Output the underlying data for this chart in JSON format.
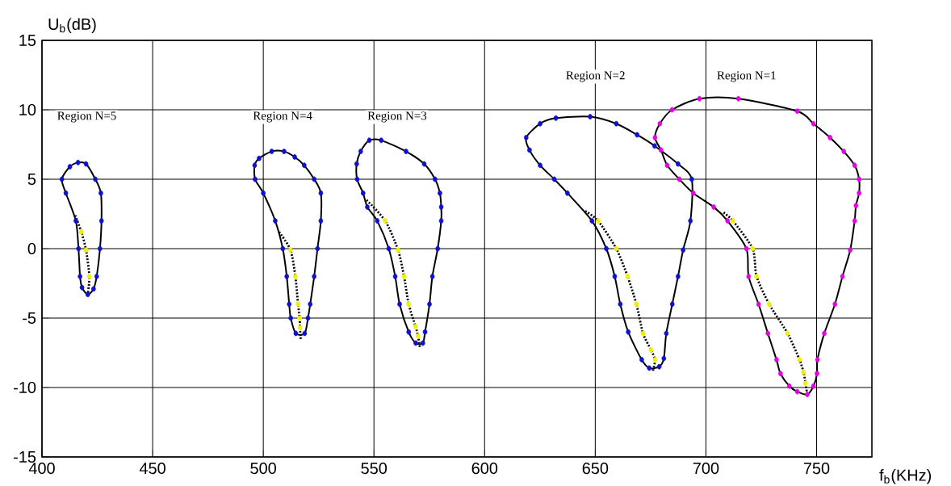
{
  "chart_data": {
    "type": "line",
    "xlabel": "f$_{b}$(KHz)",
    "ylabel": "U$_{b}$(dB)",
    "xlim": [
      400,
      775
    ],
    "ylim": [
      -15,
      15
    ],
    "xticks": [
      400,
      450,
      500,
      550,
      600,
      650,
      700,
      750
    ],
    "yticks": [
      -15,
      -10,
      -5,
      0,
      5,
      10,
      15
    ],
    "grid": true,
    "annotations": [
      "Region N=5",
      "Region N=4",
      "Region N=3",
      "Region N=2",
      "Region N=1"
    ],
    "series": [
      {
        "type": "scatter",
        "color": "#1010d0",
        "marker": "circle",
        "x": [
          415.3,
          410.8,
          409.0,
          412.6,
          416.3,
          419.9,
          424.1,
          426.6,
          426.9,
          426.2,
          424.7,
          423.3,
          420.7,
          418.1,
          417.2,
          416.5
        ],
        "values": [
          2.0,
          4.0,
          5.0,
          5.9,
          6.2,
          6.1,
          5.0,
          4.0,
          2.0,
          0.0,
          -2.0,
          -2.9,
          -3.3,
          -2.8,
          -2.0,
          0.0
        ]
      },
      {
        "type": "scatter",
        "color": "#f0f000",
        "marker": "circle",
        "x": [
          417.8,
          419.9,
          421.4
        ],
        "values": [
          1.2,
          -0.1,
          -2.0
        ]
      },
      {
        "color": "#000000",
        "line_style": "dotted",
        "marker": "none",
        "x": [
          415.0,
          417.8,
          419.9,
          421.4,
          420.7
        ],
        "values": [
          2.4,
          1.2,
          -0.1,
          -2.0,
          -3.3
        ]
      },
      {
        "type": "scatter",
        "color": "#1010d0",
        "marker": "circle",
        "x": [
          496.3,
          496.1,
          498.1,
          503.8,
          509.4,
          514.2,
          518.5,
          523.0,
          526.0,
          526.0,
          524.5,
          523.0,
          521.2,
          520.2,
          518.7,
          514.7,
          512.4,
          511.7,
          510.6,
          508.8,
          505.4,
          500.0
        ],
        "values": [
          5.0,
          6.0,
          6.5,
          7.0,
          7.0,
          6.6,
          6.0,
          5.0,
          4.0,
          2.0,
          0.0,
          -2.0,
          -4.0,
          -5.0,
          -6.1,
          -6.1,
          -5.0,
          -4.0,
          -2.0,
          0.0,
          2.0,
          4.0
        ]
      },
      {
        "type": "scatter",
        "color": "#f0f000",
        "marker": "circle",
        "x": [
          512.3,
          514.5,
          515.7,
          516.4,
          516.6
        ],
        "values": [
          -0.1,
          -2.0,
          -4.0,
          -5.0,
          -5.7
        ]
      },
      {
        "color": "#000000",
        "line_style": "dotted",
        "marker": "none",
        "x": [
          507.2,
          512.3,
          514.5,
          515.7,
          516.4,
          516.6,
          516.9
        ],
        "values": [
          1.2,
          -0.1,
          -2.0,
          -4.0,
          -5.0,
          -5.7,
          -6.5
        ]
      },
      {
        "type": "scatter",
        "color": "#1010d0",
        "marker": "circle",
        "x": [
          542.4,
          542.2,
          544.0,
          547.9,
          553.3,
          564.5,
          572.7,
          577.6,
          579.8,
          580.4,
          580.4,
          578.8,
          576.4,
          575.1,
          573.1,
          572.1,
          568.9,
          565.7,
          561.6,
          559.6,
          556.7,
          551.5,
          547.0,
          545.1
        ],
        "values": [
          5.0,
          6.1,
          7.0,
          7.8,
          7.8,
          7.0,
          6.1,
          5.0,
          4.0,
          3.0,
          2.0,
          0.0,
          -2.0,
          -4.0,
          -6.0,
          -6.8,
          -6.8,
          -6.0,
          -4.0,
          -2.0,
          0.0,
          2.0,
          3.0,
          4.0
        ]
      },
      {
        "type": "scatter",
        "color": "#f0f000",
        "marker": "circle",
        "x": [
          555.1,
          560.9,
          563.6,
          565.7,
          568.8,
          569.9
        ],
        "values": [
          2.0,
          -0.1,
          -2.0,
          -4.0,
          -5.6,
          -6.3
        ]
      },
      {
        "color": "#000000",
        "line_style": "dotted",
        "marker": "none",
        "x": [
          546.7,
          555.1,
          560.9,
          563.6,
          565.7,
          568.8,
          569.9,
          570.9
        ],
        "values": [
          3.5,
          2.0,
          -0.1,
          -2.0,
          -4.0,
          -5.6,
          -6.3,
          -7.2
        ]
      },
      {
        "type": "scatter",
        "color": "#1010d0",
        "marker": "circle",
        "x": [
          618.8,
          625.1,
          632.2,
          647.7,
          659.5,
          668.9,
          676.8,
          687.4,
          693.6,
          693.0,
          689.7,
          687.4,
          684.8,
          682.1,
          681.0,
          678.9,
          674.4,
          671.0,
          664.9,
          661.3,
          658.8,
          655.0,
          648.5,
          637.4,
          631.5,
          625.1,
          620.3
        ],
        "values": [
          8.0,
          9.0,
          9.4,
          9.5,
          9.0,
          8.2,
          7.4,
          6.1,
          5.0,
          2.0,
          -0.1,
          -2.0,
          -4.0,
          -6.1,
          -7.9,
          -8.5,
          -8.6,
          -8.0,
          -6.0,
          -4.0,
          -2.0,
          0.0,
          2.0,
          4.0,
          5.0,
          6.0,
          7.1
        ]
      },
      {
        "type": "scatter",
        "color": "#f0f000",
        "marker": "circle",
        "x": [
          651.3,
          659.5,
          664.6,
          668.6,
          671.6,
          675.2,
          677.0
        ],
        "values": [
          2.0,
          0.0,
          -2.0,
          -4.0,
          -6.1,
          -7.3,
          -8.0
        ]
      },
      {
        "color": "#000000",
        "line_style": "dotted",
        "marker": "none",
        "x": [
          645.5,
          651.3,
          659.5,
          664.6,
          668.6,
          671.6,
          675.2,
          677.0,
          676.1
        ],
        "values": [
          2.7,
          2.0,
          0.0,
          -2.0,
          -4.0,
          -6.1,
          -7.3,
          -8.0,
          -8.8
        ]
      },
      {
        "type": "scatter",
        "color": "#e600e6",
        "marker": "circle",
        "x": [
          684.7,
          697.1,
          714.7,
          741.3,
          748.6,
          756.1,
          762.3,
          767.2,
          769.2,
          769.2,
          767.8,
          767.2,
          765.2,
          761.7,
          758.3,
          753.5,
          750.4,
          750.2,
          748.6,
          745.8,
          741.3,
          737.7,
          733.7,
          731.9,
          728.0,
          723.8,
          719.3,
          718.3,
          709.8,
          703.5,
          694.3,
          688.0,
          682.5,
          679.7,
          677.0,
          679.2
        ],
        "values": [
          10.0,
          10.8,
          10.8,
          9.9,
          9.0,
          8.0,
          7.0,
          6.0,
          5.0,
          4.0,
          3.1,
          2.0,
          -0.1,
          -2.0,
          -4.0,
          -6.1,
          -8.0,
          -9.0,
          -9.9,
          -10.5,
          -10.3,
          -9.9,
          -9.0,
          -8.0,
          -6.1,
          -4.0,
          -2.0,
          0.0,
          2.0,
          3.0,
          4.0,
          5.0,
          6.0,
          7.1,
          8.0,
          9.0
        ]
      },
      {
        "type": "scatter",
        "color": "#f0f000",
        "marker": "circle",
        "x": [
          712.2,
          721.1,
          722.9,
          728.6,
          736.9,
          742.3,
          744.1,
          745.0
        ],
        "values": [
          2.0,
          0.0,
          -2.0,
          -4.0,
          -6.1,
          -8.0,
          -8.9,
          -9.7
        ]
      },
      {
        "color": "#000000",
        "line_style": "dotted",
        "marker": "none",
        "x": [
          708.0,
          712.2,
          721.1,
          722.9,
          728.6,
          736.9,
          742.3,
          744.1,
          745.0,
          745.8
        ],
        "values": [
          2.6,
          2.0,
          0.0,
          -2.0,
          -4.0,
          -6.1,
          -8.0,
          -8.9,
          -9.7,
          -10.5
        ]
      }
    ]
  }
}
